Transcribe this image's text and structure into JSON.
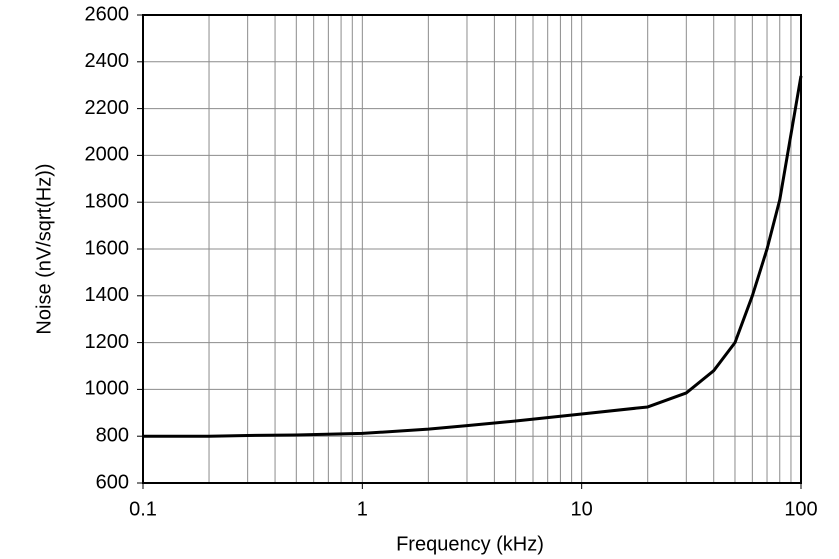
{
  "chart_data": {
    "type": "line",
    "x_label": "Frequency (kHz)",
    "y_label": "Noise (nV/sqrt(Hz))",
    "x": [
      0.1,
      0.2,
      0.3,
      0.5,
      1,
      2,
      3,
      5,
      10,
      20,
      30,
      40,
      50,
      60,
      70,
      80,
      100
    ],
    "series": [
      {
        "name": "Noise",
        "color": "#000000",
        "values": [
          800,
          800,
          803,
          805,
          812,
          830,
          845,
          865,
          895,
          925,
          985,
          1080,
          1200,
          1400,
          1600,
          1810,
          2340
        ]
      }
    ],
    "xlim": [
      0.1,
      100
    ],
    "xticks": [
      0.1,
      1,
      10,
      100
    ],
    "x_log": true,
    "ylim": [
      600,
      2600
    ],
    "yticks": [
      600,
      800,
      1000,
      1200,
      1400,
      1600,
      1800,
      2000,
      2200,
      2400,
      2600
    ],
    "grid": true
  }
}
